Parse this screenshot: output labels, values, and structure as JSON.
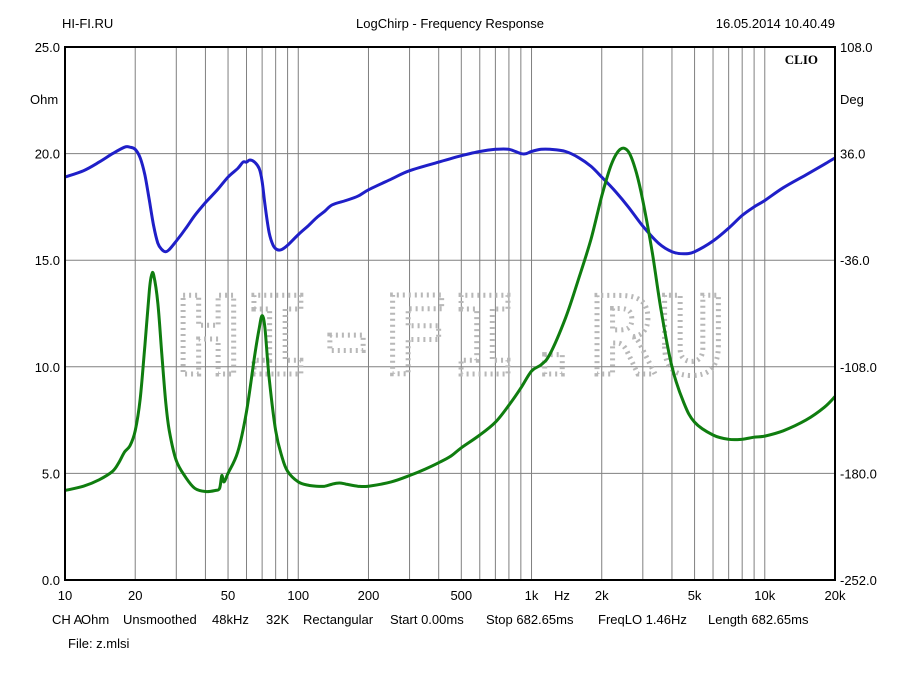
{
  "header": {
    "left": "HI-FI.RU",
    "center": "LogChirp - Frequency Response",
    "right": "16.05.2014 10.40.49"
  },
  "brand": "CLIO",
  "watermark": "HI-FI.RU",
  "footer": {
    "settings": [
      "CH A",
      "Ohm",
      "Unsmoothed",
      "48kHz",
      "32K",
      "Rectangular",
      "Start 0.00ms",
      "Stop 682.65ms",
      "FreqLO 1.46Hz",
      "Length 682.65ms"
    ],
    "file": "File: z.mlsi"
  },
  "chart_data": {
    "type": "line",
    "title": "LogChirp - Frequency Response",
    "xlabel": "Hz",
    "ylabel": "Ohm",
    "y2label": "Deg",
    "xscale": "log",
    "xlim": [
      10,
      20000
    ],
    "ylim": [
      0,
      25
    ],
    "y2lim": [
      -252,
      108
    ],
    "grid": true,
    "x_ticks": [
      {
        "v": 10,
        "label": "10"
      },
      {
        "v": 20,
        "label": "20"
      },
      {
        "v": 50,
        "label": "50"
      },
      {
        "v": 100,
        "label": "100"
      },
      {
        "v": 200,
        "label": "200"
      },
      {
        "v": 500,
        "label": "500"
      },
      {
        "v": 1000,
        "label": "1k"
      },
      {
        "v": 2000,
        "label": "2k"
      },
      {
        "v": 5000,
        "label": "5k"
      },
      {
        "v": 10000,
        "label": "10k"
      },
      {
        "v": 20000,
        "label": "20k"
      }
    ],
    "y_ticks": [
      {
        "v": 0,
        "label": "0.0"
      },
      {
        "v": 5,
        "label": "5.0"
      },
      {
        "v": 10,
        "label": "10.0"
      },
      {
        "v": 15,
        "label": "15.0"
      },
      {
        "v": 20,
        "label": "20.0"
      },
      {
        "v": 25,
        "label": "25.0"
      }
    ],
    "y2_ticks": [
      {
        "v": -252,
        "label": "-252.0"
      },
      {
        "v": -180,
        "label": "-180.0"
      },
      {
        "v": -108,
        "label": "-108.0"
      },
      {
        "v": -36,
        "label": "-36.0"
      },
      {
        "v": 36,
        "label": "36.0"
      },
      {
        "v": 108,
        "label": "108.0"
      }
    ],
    "series": [
      {
        "color": "#1f1fc8",
        "axis": "y",
        "points": [
          [
            10,
            18.9
          ],
          [
            12,
            19.2
          ],
          [
            14,
            19.6
          ],
          [
            16,
            20.0
          ],
          [
            18,
            20.3
          ],
          [
            19,
            20.3
          ],
          [
            20,
            20.2
          ],
          [
            21,
            19.8
          ],
          [
            22,
            19.0
          ],
          [
            23,
            17.8
          ],
          [
            24,
            16.6
          ],
          [
            25,
            15.8
          ],
          [
            26,
            15.5
          ],
          [
            27,
            15.4
          ],
          [
            28,
            15.5
          ],
          [
            30,
            15.9
          ],
          [
            33,
            16.5
          ],
          [
            36,
            17.1
          ],
          [
            40,
            17.7
          ],
          [
            45,
            18.3
          ],
          [
            50,
            18.9
          ],
          [
            55,
            19.3
          ],
          [
            58,
            19.6
          ],
          [
            60,
            19.6
          ],
          [
            62,
            19.7
          ],
          [
            65,
            19.6
          ],
          [
            68,
            19.3
          ],
          [
            70,
            18.7
          ],
          [
            72,
            17.6
          ],
          [
            75,
            16.3
          ],
          [
            78,
            15.7
          ],
          [
            81,
            15.5
          ],
          [
            85,
            15.5
          ],
          [
            90,
            15.7
          ],
          [
            100,
            16.2
          ],
          [
            110,
            16.6
          ],
          [
            120,
            17.0
          ],
          [
            130,
            17.3
          ],
          [
            140,
            17.6
          ],
          [
            160,
            17.8
          ],
          [
            180,
            18.0
          ],
          [
            200,
            18.3
          ],
          [
            250,
            18.8
          ],
          [
            300,
            19.2
          ],
          [
            400,
            19.6
          ],
          [
            500,
            19.9
          ],
          [
            600,
            20.1
          ],
          [
            700,
            20.2
          ],
          [
            800,
            20.2
          ],
          [
            900,
            20.0
          ],
          [
            950,
            20.0
          ],
          [
            1000,
            20.1
          ],
          [
            1100,
            20.2
          ],
          [
            1200,
            20.2
          ],
          [
            1400,
            20.1
          ],
          [
            1600,
            19.8
          ],
          [
            1800,
            19.4
          ],
          [
            2000,
            18.9
          ],
          [
            2300,
            18.2
          ],
          [
            2600,
            17.5
          ],
          [
            3000,
            16.6
          ],
          [
            3500,
            15.8
          ],
          [
            4000,
            15.4
          ],
          [
            4500,
            15.3
          ],
          [
            5000,
            15.4
          ],
          [
            6000,
            15.9
          ],
          [
            7000,
            16.5
          ],
          [
            8000,
            17.1
          ],
          [
            9000,
            17.5
          ],
          [
            10000,
            17.8
          ],
          [
            12000,
            18.4
          ],
          [
            15000,
            19.0
          ],
          [
            18000,
            19.5
          ],
          [
            20000,
            19.8
          ]
        ]
      },
      {
        "color": "#0f7d0f",
        "axis": "y",
        "points": [
          [
            10,
            4.2
          ],
          [
            12,
            4.4
          ],
          [
            14,
            4.7
          ],
          [
            16,
            5.1
          ],
          [
            17,
            5.5
          ],
          [
            18,
            6.0
          ],
          [
            19,
            6.3
          ],
          [
            20,
            7.0
          ],
          [
            21,
            8.5
          ],
          [
            22,
            11.0
          ],
          [
            23,
            13.6
          ],
          [
            23.5,
            14.3
          ],
          [
            24,
            14.3
          ],
          [
            25,
            13.0
          ],
          [
            26,
            10.6
          ],
          [
            27,
            8.4
          ],
          [
            28,
            7.0
          ],
          [
            30,
            5.6
          ],
          [
            33,
            4.8
          ],
          [
            36,
            4.3
          ],
          [
            40,
            4.15
          ],
          [
            44,
            4.2
          ],
          [
            46,
            4.3
          ],
          [
            47,
            4.9
          ],
          [
            48,
            4.6
          ],
          [
            50,
            5.0
          ],
          [
            55,
            6.0
          ],
          [
            60,
            7.9
          ],
          [
            65,
            10.5
          ],
          [
            68,
            11.8
          ],
          [
            70,
            12.4
          ],
          [
            72,
            11.8
          ],
          [
            75,
            9.5
          ],
          [
            80,
            7.0
          ],
          [
            85,
            5.8
          ],
          [
            90,
            5.1
          ],
          [
            100,
            4.6
          ],
          [
            110,
            4.45
          ],
          [
            120,
            4.4
          ],
          [
            130,
            4.4
          ],
          [
            140,
            4.5
          ],
          [
            150,
            4.55
          ],
          [
            160,
            4.5
          ],
          [
            180,
            4.4
          ],
          [
            200,
            4.4
          ],
          [
            250,
            4.6
          ],
          [
            300,
            4.9
          ],
          [
            350,
            5.2
          ],
          [
            400,
            5.5
          ],
          [
            450,
            5.8
          ],
          [
            500,
            6.2
          ],
          [
            600,
            6.8
          ],
          [
            700,
            7.4
          ],
          [
            800,
            8.2
          ],
          [
            900,
            9.0
          ],
          [
            1000,
            9.8
          ],
          [
            1100,
            10.1
          ],
          [
            1200,
            10.6
          ],
          [
            1400,
            12.3
          ],
          [
            1600,
            14.2
          ],
          [
            1800,
            16.0
          ],
          [
            2000,
            18.0
          ],
          [
            2200,
            19.5
          ],
          [
            2400,
            20.2
          ],
          [
            2600,
            20.1
          ],
          [
            2800,
            19.2
          ],
          [
            3000,
            17.8
          ],
          [
            3300,
            15.3
          ],
          [
            3600,
            12.6
          ],
          [
            4000,
            10.0
          ],
          [
            4500,
            8.3
          ],
          [
            5000,
            7.4
          ],
          [
            6000,
            6.8
          ],
          [
            7000,
            6.6
          ],
          [
            8000,
            6.6
          ],
          [
            9000,
            6.7
          ],
          [
            10000,
            6.75
          ],
          [
            12000,
            7.0
          ],
          [
            15000,
            7.5
          ],
          [
            18000,
            8.1
          ],
          [
            20000,
            8.6
          ]
        ]
      }
    ]
  }
}
